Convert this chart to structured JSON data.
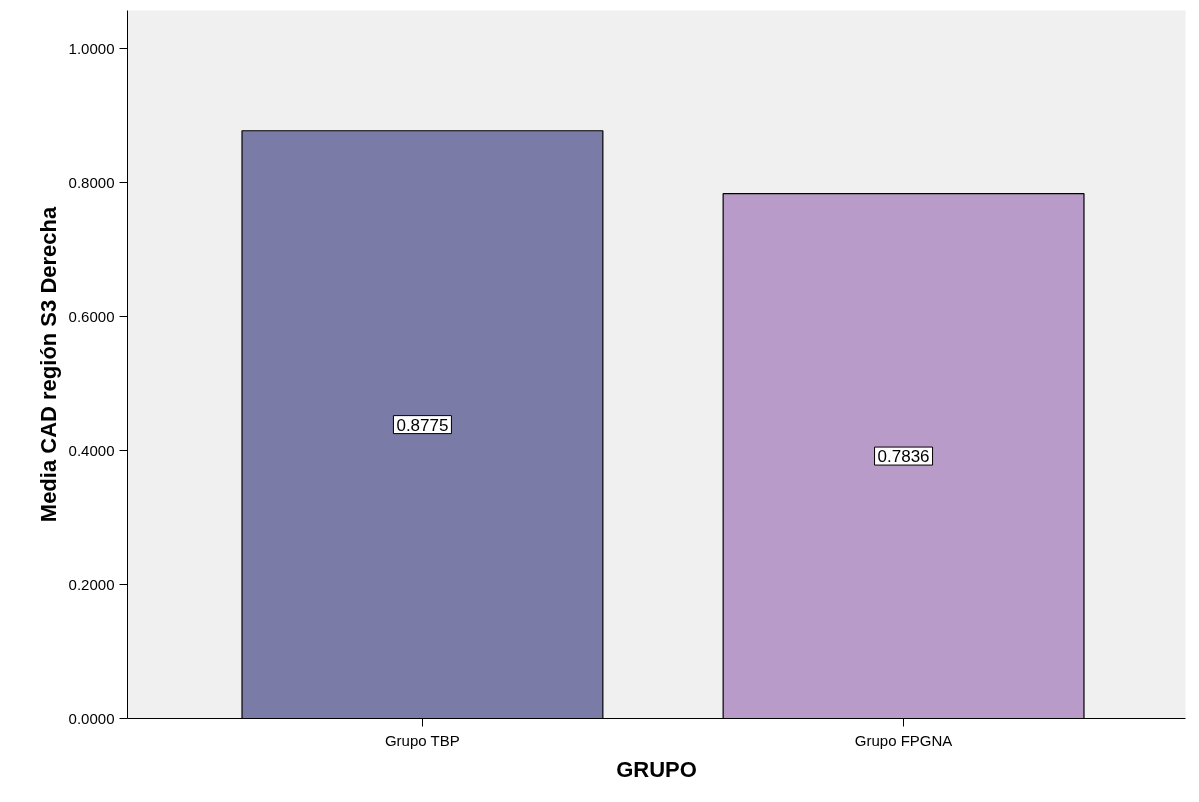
{
  "chart_data": {
    "type": "bar",
    "xlabel": "GRUPO",
    "ylabel": "Media CAD región S3 Derecha",
    "categories": [
      "Grupo TBP",
      "Grupo FPGNA"
    ],
    "values": [
      0.8775,
      0.7836
    ],
    "colors": [
      "#7b7ba8",
      "#b89bc9"
    ],
    "ylim": [
      0,
      1.057
    ],
    "yticks": [
      {
        "value": 0,
        "label": "0.0000"
      },
      {
        "value": 0.2,
        "label": "0.2000"
      },
      {
        "value": 0.4,
        "label": "0.4000"
      },
      {
        "value": 0.6,
        "label": "0.6000"
      },
      {
        "value": 0.8,
        "label": "0.8000"
      },
      {
        "value": 1.0,
        "label": "1.0000"
      }
    ],
    "data_labels": true,
    "grid": false
  }
}
